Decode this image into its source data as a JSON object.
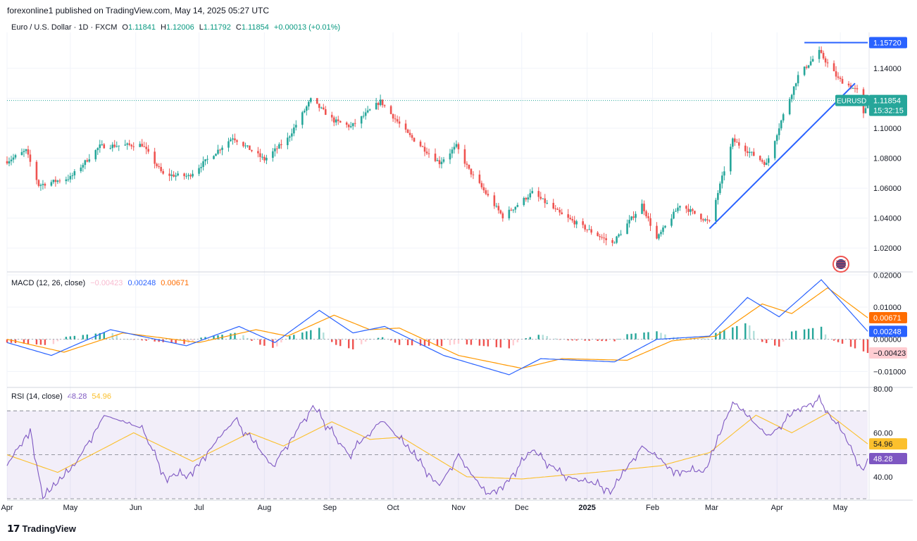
{
  "header": {
    "published": "forexonline1 published on TradingView.com, May 14, 2025 05:27 UTC"
  },
  "footer": {
    "brand": "TradingView"
  },
  "colors": {
    "up": "#26a69a",
    "down": "#ef5350",
    "macd": "#2962ff",
    "signal": "#ff9800",
    "rsi": "#7e57c2",
    "rsi_ma": "#fbc02d",
    "trendline": "#2962ff"
  },
  "chart_data": [
    {
      "type": "candlestick",
      "title": "Euro / U.S. Dollar · 1D · FXCM",
      "ohlc_label": {
        "o_key": "O",
        "o": "1.11841",
        "h_key": "H",
        "h": "1.12006",
        "l_key": "L",
        "l": "1.11792",
        "c_key": "C",
        "c": "1.11854",
        "change": "+0.00013 (+0.01%)"
      },
      "symbol_tag": "EURUSD",
      "last_price": "1.11854",
      "countdown": "15:32:15",
      "level_tag": "1.15720",
      "y_ticks": [
        "1.14000",
        "1.12000",
        "1.10000",
        "1.08000",
        "1.06000",
        "1.04000",
        "1.02000"
      ],
      "ylim": [
        1.005,
        1.164
      ],
      "x_ticks": [
        "Apr",
        "May",
        "Jun",
        "Jul",
        "Aug",
        "Sep",
        "Oct",
        "Nov",
        "Dec",
        "2025",
        "Feb",
        "Mar",
        "Apr",
        "May"
      ],
      "x_tick_dates": [
        "2024-04-01",
        "2024-05-01",
        "2024-06-01",
        "2024-07-01",
        "2024-08-01",
        "2024-09-01",
        "2024-10-01",
        "2024-11-01",
        "2024-12-01",
        "2025-01-01",
        "2025-02-01",
        "2025-03-01",
        "2025-04-01",
        "2025-05-01"
      ],
      "xlim": [
        "2024-04-01",
        "2025-05-14"
      ],
      "close_anchors": [
        {
          "d": "2024-04-01",
          "v": 1.078
        },
        {
          "d": "2024-04-10",
          "v": 1.085
        },
        {
          "d": "2024-04-16",
          "v": 1.062
        },
        {
          "d": "2024-05-01",
          "v": 1.067
        },
        {
          "d": "2024-05-15",
          "v": 1.088
        },
        {
          "d": "2024-06-04",
          "v": 1.089
        },
        {
          "d": "2024-06-14",
          "v": 1.069
        },
        {
          "d": "2024-06-26",
          "v": 1.068
        },
        {
          "d": "2024-07-17",
          "v": 1.094
        },
        {
          "d": "2024-08-01",
          "v": 1.079
        },
        {
          "d": "2024-08-12",
          "v": 1.093
        },
        {
          "d": "2024-08-23",
          "v": 1.119
        },
        {
          "d": "2024-09-03",
          "v": 1.105
        },
        {
          "d": "2024-09-11",
          "v": 1.101
        },
        {
          "d": "2024-09-25",
          "v": 1.118
        },
        {
          "d": "2024-10-08",
          "v": 1.096
        },
        {
          "d": "2024-10-23",
          "v": 1.077
        },
        {
          "d": "2024-10-31",
          "v": 1.088
        },
        {
          "d": "2024-11-06",
          "v": 1.072
        },
        {
          "d": "2024-11-22",
          "v": 1.041
        },
        {
          "d": "2024-12-06",
          "v": 1.057
        },
        {
          "d": "2024-12-20",
          "v": 1.042
        },
        {
          "d": "2025-01-13",
          "v": 1.023
        },
        {
          "d": "2025-01-27",
          "v": 1.049
        },
        {
          "d": "2025-02-03",
          "v": 1.026
        },
        {
          "d": "2025-02-14",
          "v": 1.049
        },
        {
          "d": "2025-02-28",
          "v": 1.037
        },
        {
          "d": "2025-03-11",
          "v": 1.092
        },
        {
          "d": "2025-03-27",
          "v": 1.076
        },
        {
          "d": "2025-04-03",
          "v": 1.105
        },
        {
          "d": "2025-04-11",
          "v": 1.135
        },
        {
          "d": "2025-04-21",
          "v": 1.151
        },
        {
          "d": "2025-04-30",
          "v": 1.133
        },
        {
          "d": "2025-05-09",
          "v": 1.125
        },
        {
          "d": "2025-05-12",
          "v": 1.109
        },
        {
          "d": "2025-05-14",
          "v": 1.1185
        }
      ],
      "horizontal_level": 1.1572,
      "horizontal_level_span": [
        "2025-04-14",
        "2025-05-14"
      ],
      "trendline": {
        "start": {
          "d": "2025-02-28",
          "v": 1.033
        },
        "end": {
          "d": "2025-05-08",
          "v": 1.13
        }
      },
      "last_price_line": 1.11854
    },
    {
      "type": "line",
      "title": "MACD (12, 26, close)",
      "legend_values": {
        "histogram": "−0.00423",
        "macd": "0.00248",
        "signal": "0.00671"
      },
      "tags": {
        "signal": "0.00671",
        "macd": "0.00248",
        "histogram": "−0.00423"
      },
      "y_ticks": [
        "0.02000",
        "0.01000",
        "0.00000",
        "−0.01000"
      ],
      "ylim": [
        -0.0145,
        0.0205
      ],
      "macd_anchors": [
        {
          "d": "2024-04-01",
          "v": -0.001
        },
        {
          "d": "2024-04-22",
          "v": -0.005
        },
        {
          "d": "2024-05-20",
          "v": 0.003
        },
        {
          "d": "2024-06-25",
          "v": -0.002
        },
        {
          "d": "2024-07-20",
          "v": 0.004
        },
        {
          "d": "2024-08-06",
          "v": -0.001
        },
        {
          "d": "2024-08-27",
          "v": 0.009
        },
        {
          "d": "2024-09-12",
          "v": 0.002
        },
        {
          "d": "2024-09-27",
          "v": 0.004
        },
        {
          "d": "2024-10-25",
          "v": -0.005
        },
        {
          "d": "2024-11-25",
          "v": -0.011
        },
        {
          "d": "2024-12-10",
          "v": -0.006
        },
        {
          "d": "2025-01-14",
          "v": -0.007
        },
        {
          "d": "2025-02-03",
          "v": 0.0
        },
        {
          "d": "2025-02-28",
          "v": 0.001
        },
        {
          "d": "2025-03-18",
          "v": 0.013
        },
        {
          "d": "2025-04-02",
          "v": 0.007
        },
        {
          "d": "2025-04-22",
          "v": 0.0185
        },
        {
          "d": "2025-05-14",
          "v": 0.00248
        }
      ],
      "signal_anchors": [
        {
          "d": "2024-04-01",
          "v": 0.0
        },
        {
          "d": "2024-04-28",
          "v": -0.004
        },
        {
          "d": "2024-05-26",
          "v": 0.002
        },
        {
          "d": "2024-07-01",
          "v": -0.001
        },
        {
          "d": "2024-07-28",
          "v": 0.003
        },
        {
          "d": "2024-08-12",
          "v": 0.001
        },
        {
          "d": "2024-09-03",
          "v": 0.0075
        },
        {
          "d": "2024-09-20",
          "v": 0.003
        },
        {
          "d": "2024-10-04",
          "v": 0.0035
        },
        {
          "d": "2024-11-01",
          "v": -0.005
        },
        {
          "d": "2024-12-01",
          "v": -0.009
        },
        {
          "d": "2024-12-20",
          "v": -0.006
        },
        {
          "d": "2025-01-20",
          "v": -0.0065
        },
        {
          "d": "2025-02-10",
          "v": -0.0005
        },
        {
          "d": "2025-03-03",
          "v": 0.001
        },
        {
          "d": "2025-03-25",
          "v": 0.011
        },
        {
          "d": "2025-04-08",
          "v": 0.008
        },
        {
          "d": "2025-04-25",
          "v": 0.016
        },
        {
          "d": "2025-05-14",
          "v": 0.00671
        }
      ]
    },
    {
      "type": "line",
      "title": "RSI (14, close)",
      "legend_values": {
        "rsi": "48.28",
        "ma": "54.96"
      },
      "tags": {
        "ma": "54.96",
        "rsi": "48.28"
      },
      "y_ticks": [
        "80.00",
        "60.00",
        "40.00"
      ],
      "ylim": [
        30,
        80
      ],
      "band": [
        30,
        70
      ],
      "midline": 50,
      "rsi_anchors": [
        {
          "d": "2024-04-01",
          "v": 45
        },
        {
          "d": "2024-04-12",
          "v": 62
        },
        {
          "d": "2024-04-18",
          "v": 30
        },
        {
          "d": "2024-05-03",
          "v": 45
        },
        {
          "d": "2024-05-17",
          "v": 68
        },
        {
          "d": "2024-06-04",
          "v": 62
        },
        {
          "d": "2024-06-15",
          "v": 40
        },
        {
          "d": "2024-06-26",
          "v": 41
        },
        {
          "d": "2024-07-18",
          "v": 66
        },
        {
          "d": "2024-08-05",
          "v": 45
        },
        {
          "d": "2024-08-24",
          "v": 72
        },
        {
          "d": "2024-09-10",
          "v": 50
        },
        {
          "d": "2024-09-26",
          "v": 66
        },
        {
          "d": "2024-10-23",
          "v": 36
        },
        {
          "d": "2024-11-01",
          "v": 50
        },
        {
          "d": "2024-11-14",
          "v": 32
        },
        {
          "d": "2024-11-22",
          "v": 36
        },
        {
          "d": "2024-12-06",
          "v": 52
        },
        {
          "d": "2024-12-20",
          "v": 41
        },
        {
          "d": "2025-01-13",
          "v": 34
        },
        {
          "d": "2025-01-27",
          "v": 54
        },
        {
          "d": "2025-02-11",
          "v": 43
        },
        {
          "d": "2025-02-26",
          "v": 42
        },
        {
          "d": "2025-03-11",
          "v": 74
        },
        {
          "d": "2025-03-28",
          "v": 58
        },
        {
          "d": "2025-04-11",
          "v": 71
        },
        {
          "d": "2025-04-21",
          "v": 75
        },
        {
          "d": "2025-05-02",
          "v": 60
        },
        {
          "d": "2025-05-12",
          "v": 42
        },
        {
          "d": "2025-05-14",
          "v": 48.28
        }
      ],
      "ma_anchors": [
        {
          "d": "2024-04-01",
          "v": 50
        },
        {
          "d": "2024-04-25",
          "v": 42
        },
        {
          "d": "2024-05-31",
          "v": 60
        },
        {
          "d": "2024-06-28",
          "v": 47
        },
        {
          "d": "2024-07-25",
          "v": 60
        },
        {
          "d": "2024-08-10",
          "v": 54
        },
        {
          "d": "2024-09-02",
          "v": 65
        },
        {
          "d": "2024-09-20",
          "v": 57
        },
        {
          "d": "2024-10-05",
          "v": 58
        },
        {
          "d": "2024-11-05",
          "v": 40
        },
        {
          "d": "2024-12-01",
          "v": 39
        },
        {
          "d": "2025-01-05",
          "v": 42
        },
        {
          "d": "2025-02-05",
          "v": 45
        },
        {
          "d": "2025-02-28",
          "v": 51
        },
        {
          "d": "2025-03-22",
          "v": 68
        },
        {
          "d": "2025-04-08",
          "v": 60
        },
        {
          "d": "2025-04-25",
          "v": 69
        },
        {
          "d": "2025-05-14",
          "v": 54.96
        }
      ]
    }
  ]
}
